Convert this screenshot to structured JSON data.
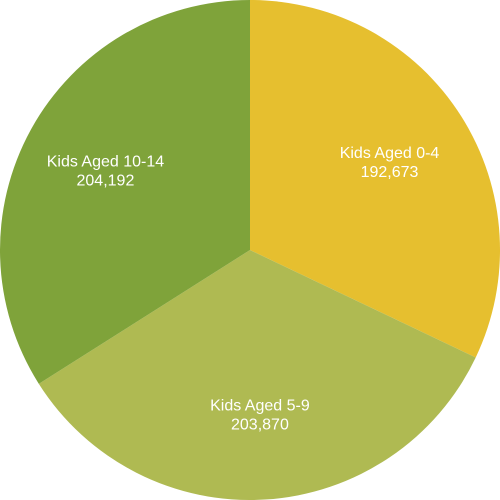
{
  "chart_data": {
    "type": "pie",
    "slices": [
      {
        "label": "Kids Aged 0-4",
        "value": 192673,
        "value_label": "192,673",
        "color": "#E6BF2F"
      },
      {
        "label": "Kids Aged 5-9",
        "value": 203870,
        "value_label": "203,870",
        "color": "#AFBA52"
      },
      {
        "label": "Kids Aged 10-14",
        "value": 204192,
        "value_label": "204,192",
        "color": "#7FA33A"
      }
    ],
    "start_angle_deg": 0,
    "direction": "clockwise"
  }
}
